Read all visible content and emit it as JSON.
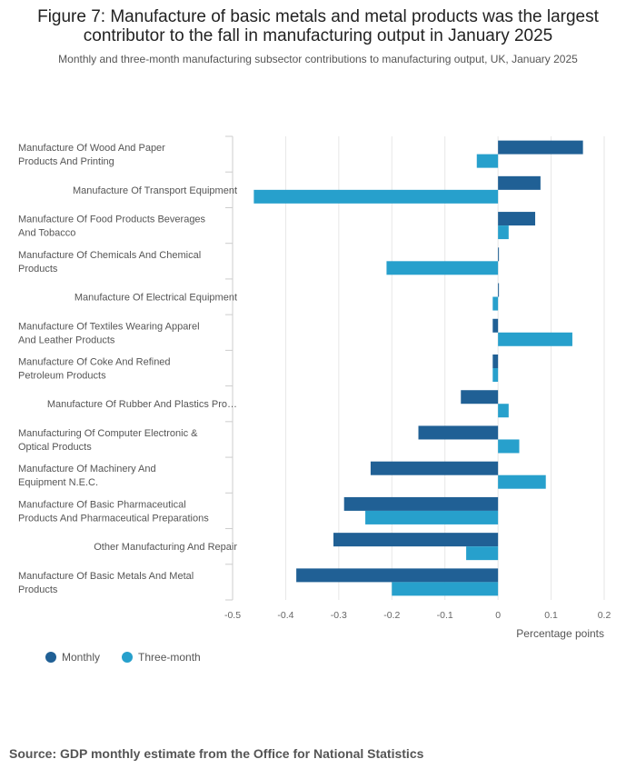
{
  "title_line1": "Figure 7: Manufacture of basic metals and metal products was the largest",
  "title_line2": "contributor to the fall in manufacturing output in January 2025",
  "subtitle": "Monthly and three-month manufacturing subsector contributions to manufacturing output, UK, January 2025",
  "source": "Source: GDP monthly estimate from the Office for National Statistics",
  "chart_data": {
    "type": "bar",
    "orientation": "horizontal",
    "categories": [
      [
        "Manufacture Of Wood And Paper",
        "Products And Printing"
      ],
      [
        "Manufacture Of Transport Equipment"
      ],
      [
        "Manufacture Of Food Products Beverages",
        "And Tobacco"
      ],
      [
        "Manufacture Of Chemicals And Chemical",
        "Products"
      ],
      [
        "Manufacture Of Electrical Equipment"
      ],
      [
        "Manufacture Of Textiles Wearing Apparel",
        "And Leather Products"
      ],
      [
        "Manufacture Of Coke And Refined",
        "Petroleum Products"
      ],
      [
        "Manufacture Of Rubber And Plastics Pro…"
      ],
      [
        "Manufacturing Of Computer Electronic &",
        "Optical Products"
      ],
      [
        "Manufacture Of Machinery And",
        "Equipment N.E.C."
      ],
      [
        "Manufacture Of Basic Pharmaceutical",
        "Products And Pharmaceutical Preparations"
      ],
      [
        "Other Manufacturing And Repair"
      ],
      [
        "Manufacture Of Basic Metals And Metal",
        "Products"
      ]
    ],
    "series": [
      {
        "name": "Monthly",
        "color": "#206095",
        "values": [
          0.16,
          0.08,
          0.07,
          0.0,
          0.0,
          -0.01,
          -0.01,
          -0.07,
          -0.15,
          -0.24,
          -0.29,
          -0.31,
          -0.38
        ]
      },
      {
        "name": "Three-month",
        "color": "#27a0cc",
        "values": [
          -0.04,
          -0.46,
          0.02,
          -0.21,
          -0.01,
          0.14,
          -0.01,
          0.02,
          0.04,
          0.09,
          -0.25,
          -0.06,
          -0.2
        ]
      }
    ],
    "xlim": [
      -0.5,
      0.2
    ],
    "xticks": [
      -0.5,
      -0.4,
      -0.3,
      -0.2,
      -0.1,
      0,
      0.1,
      0.2
    ],
    "xtick_labels": [
      "-0.5",
      "-0.4",
      "-0.3",
      "-0.2",
      "-0.1",
      "0",
      "0.1",
      "0.2"
    ],
    "xlabel": "Percentage points",
    "grid": true,
    "legend_position": "bottom-left"
  }
}
